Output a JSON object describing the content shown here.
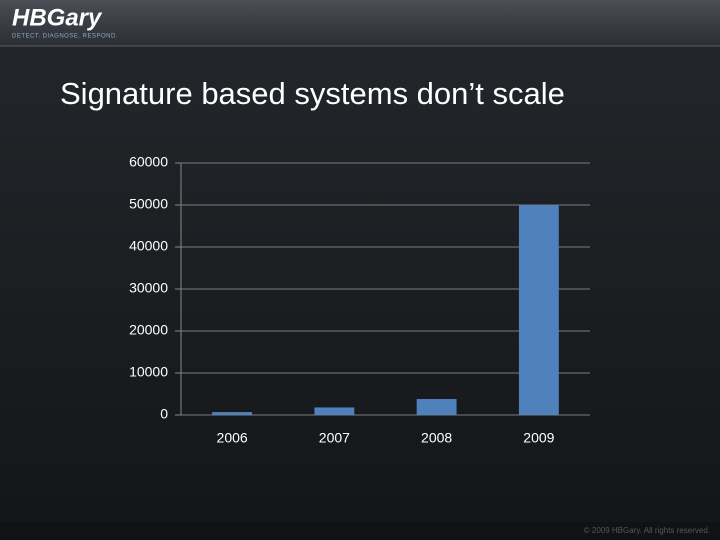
{
  "logo": {
    "name": "HBGary",
    "tagline": "DETECT. DIAGNOSE. RESPOND."
  },
  "footer": "© 2009 HBGary.  All rights reserved.",
  "chart_data": {
    "type": "bar",
    "title": "Signature based systems don’t scale",
    "categories": [
      "2006",
      "2007",
      "2008",
      "2009"
    ],
    "values": [
      700,
      1800,
      3800,
      50000
    ],
    "color": "#4f81bd",
    "ylim": [
      0,
      60000
    ],
    "yticks": [
      0,
      10000,
      20000,
      30000,
      40000,
      50000,
      60000
    ],
    "grid": true
  }
}
